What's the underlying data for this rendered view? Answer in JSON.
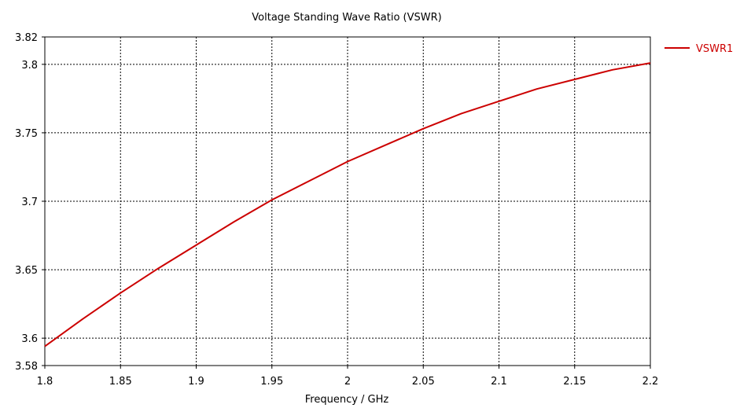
{
  "chart_data": {
    "type": "line",
    "title": "Voltage Standing Wave Ratio (VSWR)",
    "xlabel": "Frequency / GHz",
    "ylabel": "",
    "xlim": [
      1.8,
      2.2
    ],
    "ylim": [
      3.58,
      3.82
    ],
    "xticks": [
      "1.8",
      "1.85",
      "1.9",
      "1.95",
      "2",
      "2.05",
      "2.1",
      "2.15",
      "2.2"
    ],
    "yticks": [
      "3.58",
      "3.6",
      "3.65",
      "3.7",
      "3.75",
      "3.8",
      "3.82"
    ],
    "grid": true,
    "legend_position": "top-right",
    "series": [
      {
        "name": "VSWR1",
        "color": "#cc0000",
        "x": [
          1.8,
          1.825,
          1.85,
          1.875,
          1.9,
          1.925,
          1.95,
          1.975,
          2.0,
          2.025,
          2.05,
          2.075,
          2.1,
          2.125,
          2.15,
          2.175,
          2.2
        ],
        "y": [
          3.594,
          3.614,
          3.633,
          3.651,
          3.668,
          3.685,
          3.701,
          3.715,
          3.729,
          3.741,
          3.753,
          3.764,
          3.773,
          3.782,
          3.789,
          3.796,
          3.801
        ]
      }
    ]
  }
}
